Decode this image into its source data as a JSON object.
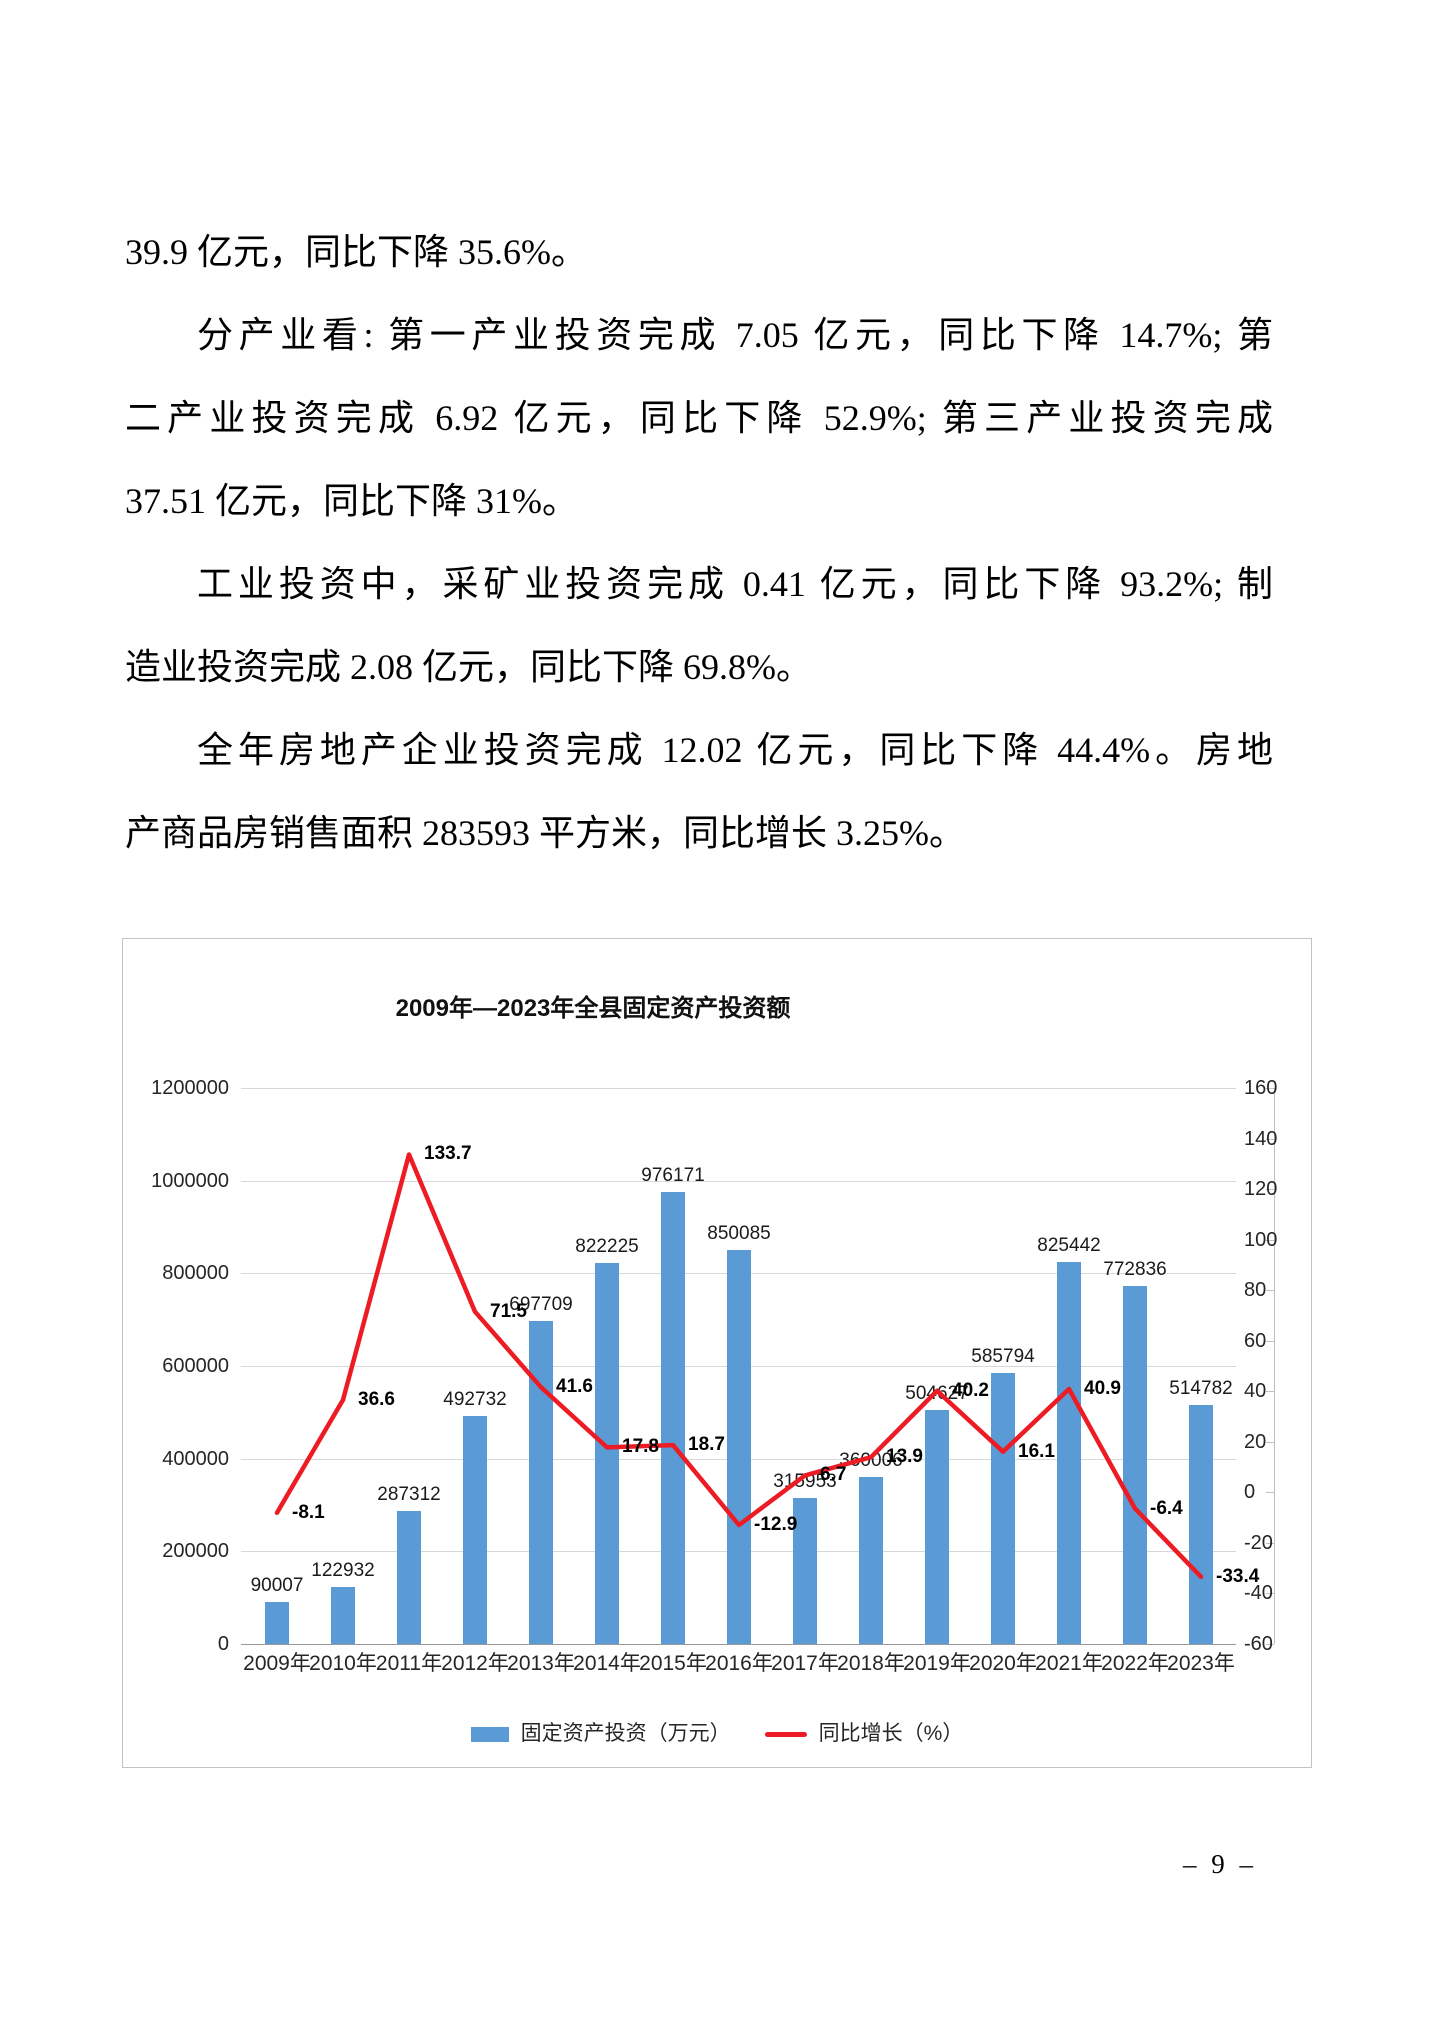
{
  "page": {
    "number_label": "– 9 –"
  },
  "document": {
    "lines": [
      {
        "text": "39.9 亿元，同比下降 35.6%。",
        "indent": false,
        "justify": false
      },
      {
        "text": "分产业看: 第一产业投资完成 7.05 亿元，同比下降 14.7%; 第",
        "indent": true,
        "justify": true
      },
      {
        "text": "二产业投资完成 6.92 亿元，同比下降 52.9%; 第三产业投资完成",
        "indent": false,
        "justify": true
      },
      {
        "text": "37.51 亿元，同比下降 31%。",
        "indent": false,
        "justify": false
      },
      {
        "text": "工业投资中，采矿业投资完成 0.41 亿元，同比下降 93.2%; 制",
        "indent": true,
        "justify": true
      },
      {
        "text": "造业投资完成 2.08 亿元，同比下降 69.8%。",
        "indent": false,
        "justify": false
      },
      {
        "text": "全年房地产企业投资完成 12.02 亿元，同比下降 44.4%。房地",
        "indent": true,
        "justify": true
      },
      {
        "text": "产商品房销售面积 283593 平方米，同比增长 3.25%。",
        "indent": false,
        "justify": false
      }
    ]
  },
  "chart_data": {
    "type": "bar+line",
    "title": "2009年—2023年全县固定资产投资额",
    "categories": [
      "2009年",
      "2010年",
      "2011年",
      "2012年",
      "2013年",
      "2014年",
      "2015年",
      "2016年",
      "2017年",
      "2018年",
      "2019年",
      "2020年",
      "2021年",
      "2022年",
      "2023年"
    ],
    "series": [
      {
        "name": "固定资产投资（万元）",
        "type": "bar",
        "axis": "left",
        "color": "#5B9BD5",
        "values": [
          90007,
          122932,
          287312,
          492732,
          697709,
          822225,
          976171,
          850085,
          315953,
          360006,
          504627,
          585794,
          825442,
          772836,
          514782
        ]
      },
      {
        "name": "同比增长（%）",
        "type": "line",
        "axis": "right",
        "color": "#ED1C24",
        "values": [
          -8.1,
          36.6,
          133.7,
          71.5,
          41.6,
          17.8,
          18.7,
          -12.9,
          6.7,
          13.9,
          40.2,
          16.1,
          40.9,
          -6.4,
          -33.4
        ]
      }
    ],
    "left_axis": {
      "min": 0,
      "max": 1200000,
      "step": 200000,
      "ticks": [
        0,
        200000,
        400000,
        600000,
        800000,
        1000000,
        1200000
      ]
    },
    "right_axis": {
      "min": -60,
      "max": 160,
      "step": 20,
      "ticks": [
        -60,
        -40,
        -20,
        0,
        20,
        40,
        60,
        80,
        100,
        120,
        140,
        160
      ]
    },
    "grid": true,
    "legend_position": "bottom"
  }
}
